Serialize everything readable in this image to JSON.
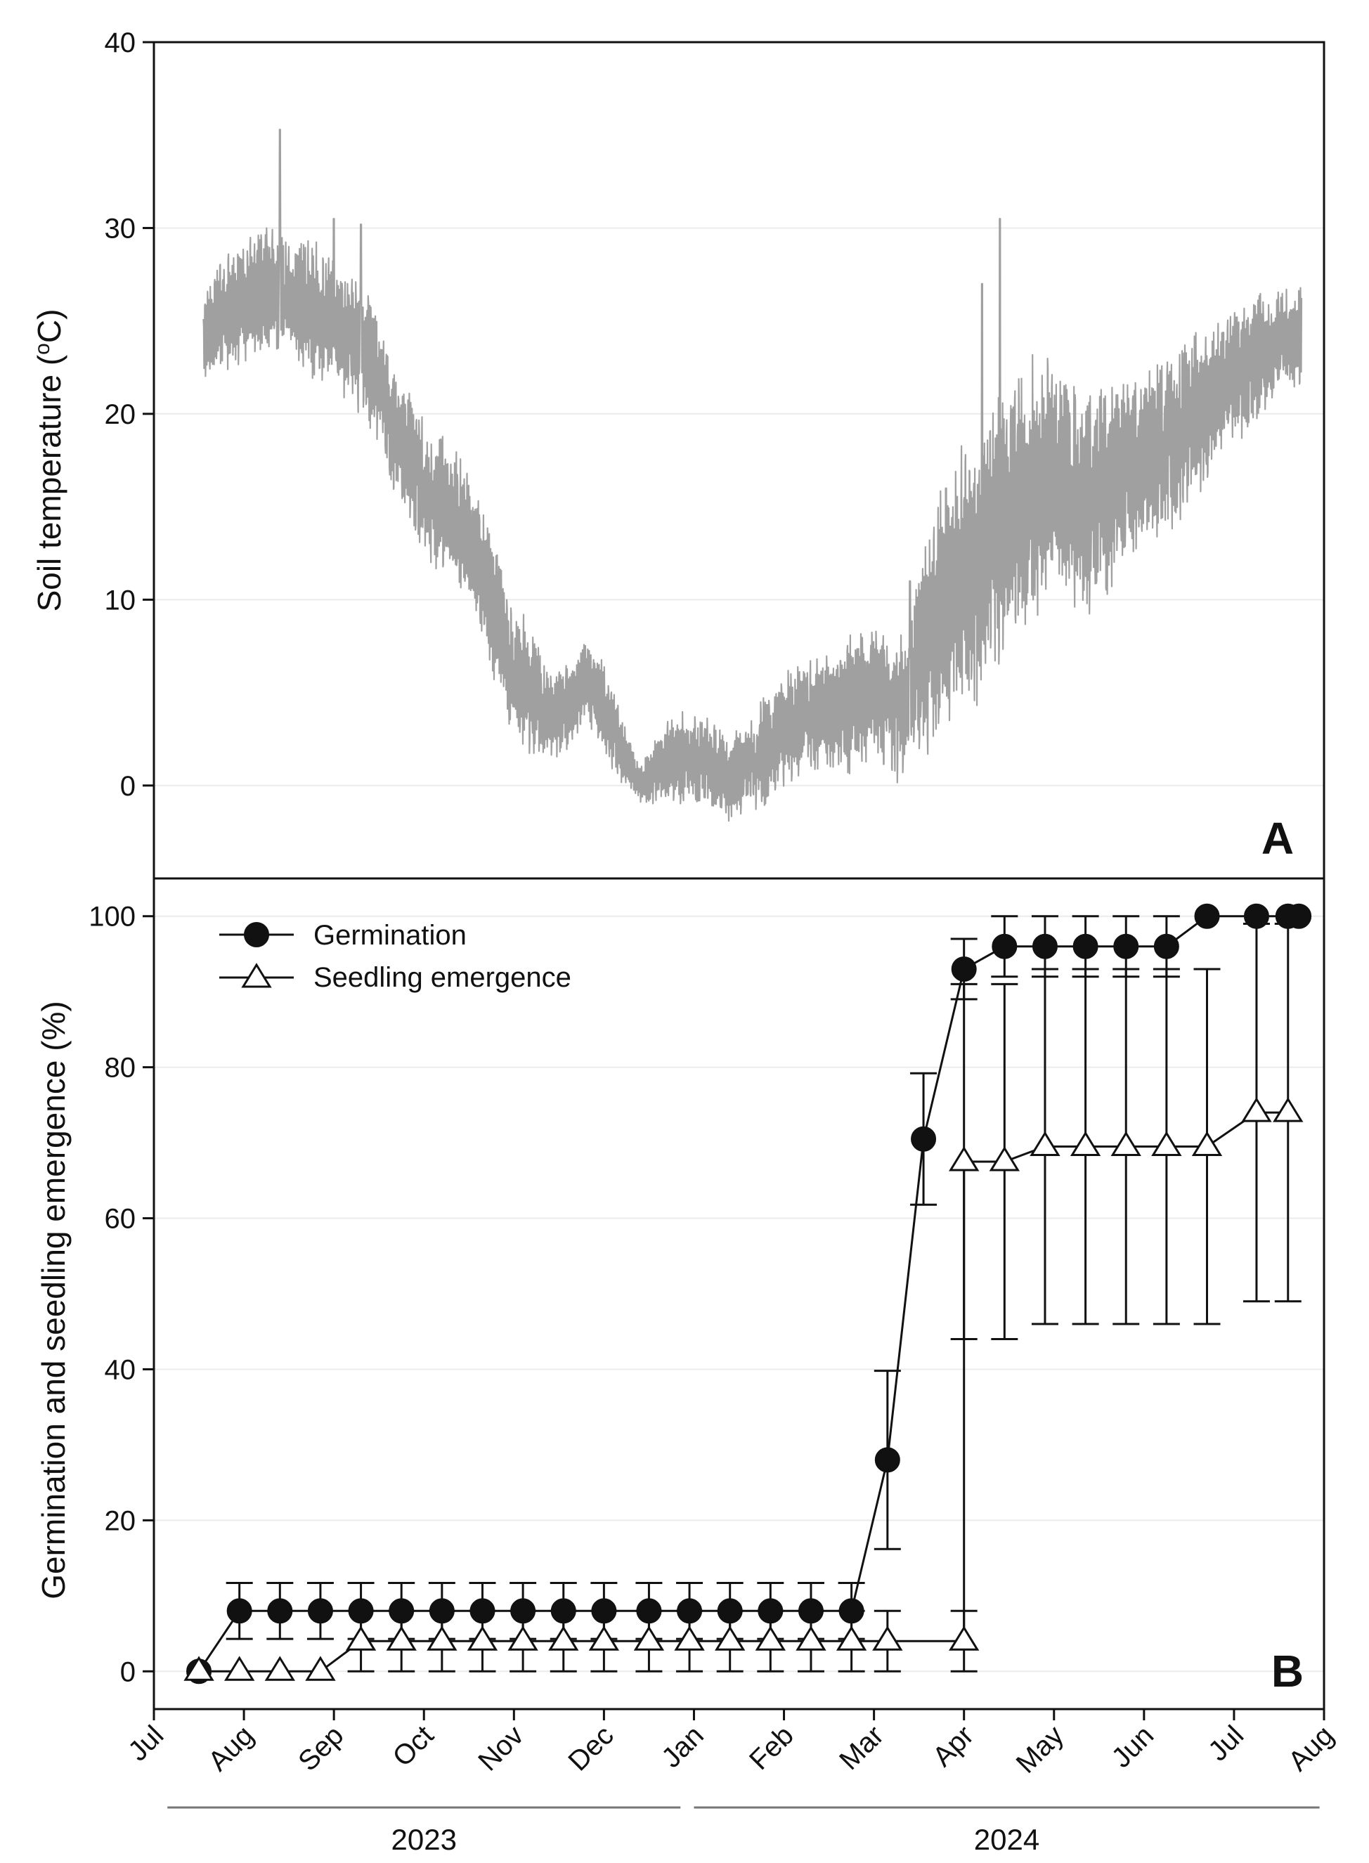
{
  "chart_data": [
    {
      "panel": "A",
      "type": "line",
      "ylabel": "Soil temperature (°C)",
      "ylabel_parts": [
        "Soil temperature (",
        "o",
        "C)"
      ],
      "ylim": [
        -5,
        40
      ],
      "yticks": [
        0,
        10,
        20,
        30,
        40
      ],
      "grid": true,
      "series": [
        {
          "name": "Soil temperature",
          "color": "#a0a0a0",
          "x_months": [
            0.55,
            0.7,
            0.85,
            1.0,
            1.15,
            1.3,
            1.45,
            1.6,
            1.8,
            2.0,
            2.2,
            2.4,
            2.6,
            2.8,
            3.0,
            3.2,
            3.4,
            3.6,
            3.8,
            4.0,
            4.2,
            4.4,
            4.6,
            4.8,
            5.0,
            5.2,
            5.4,
            5.6,
            5.8,
            6.0,
            6.2,
            6.4,
            6.6,
            6.8,
            7.0,
            7.2,
            7.4,
            7.6,
            7.8,
            8.0,
            8.2,
            8.4,
            8.6,
            8.8,
            9.0,
            9.2,
            9.4,
            9.6,
            9.8,
            10.0,
            10.2,
            10.4,
            10.6,
            10.8,
            11.0,
            11.2,
            11.4,
            11.6,
            11.8,
            12.0,
            12.2,
            12.4,
            12.6,
            12.75
          ],
          "mean": [
            24,
            25,
            25.5,
            26,
            26.5,
            27,
            26.5,
            26,
            25.5,
            25,
            24,
            23,
            20,
            18,
            16,
            15,
            14,
            12,
            9,
            6,
            5,
            4,
            4,
            6,
            4,
            2,
            0,
            1,
            1.5,
            1.5,
            1,
            0.5,
            1,
            2,
            3,
            3.5,
            4,
            4,
            4.5,
            5,
            4,
            5,
            8,
            10,
            11,
            12,
            14,
            15,
            16,
            17,
            16,
            15,
            16,
            17,
            18,
            18,
            19,
            20,
            21,
            22,
            23,
            23.5,
            24,
            24.5
          ],
          "amp": [
            2,
            2.5,
            2.5,
            2.5,
            3,
            3,
            2.5,
            3,
            3,
            3,
            3,
            3,
            3,
            3,
            3,
            3,
            3,
            3,
            3,
            3,
            3,
            2,
            2,
            2,
            2,
            1.5,
            1,
            1.5,
            2,
            2,
            2,
            2,
            2,
            2.5,
            2.5,
            2.5,
            2.5,
            3,
            3,
            3,
            3,
            4,
            5,
            6,
            6,
            6,
            6,
            6,
            6,
            5,
            5,
            5,
            5,
            4,
            4,
            4,
            4,
            4,
            3,
            3,
            3,
            2.5,
            2.5,
            2.5
          ],
          "peaks": [
            [
              1.4,
              35.3
            ],
            [
              2.0,
              30.5
            ],
            [
              2.3,
              30.2
            ],
            [
              8.4,
              11.0
            ],
            [
              8.8,
              16.0
            ],
            [
              9.4,
              30.5
            ],
            [
              9.2,
              27.0
            ]
          ]
        }
      ]
    },
    {
      "panel": "B",
      "type": "line",
      "ylabel": "Germination and seedling emergence (%)",
      "ylim": [
        -5,
        105
      ],
      "yticks": [
        0,
        20,
        40,
        60,
        80,
        100
      ],
      "grid": true,
      "xlabel": "",
      "month_labels": [
        "Jul",
        "Aug",
        "Sep",
        "Oct",
        "Nov",
        "Dec",
        "Jan",
        "Feb",
        "Mar",
        "Apr",
        "May",
        "Jun",
        "Jul",
        "Aug"
      ],
      "years": [
        {
          "label": "2023",
          "from": 0.15,
          "to": 5.85
        },
        {
          "label": "2024",
          "from": 6.0,
          "to": 12.95
        }
      ],
      "series": [
        {
          "name": "Germination",
          "marker": "filled-circle",
          "x": [
            0.5,
            0.95,
            1.4,
            1.85,
            2.3,
            2.75,
            3.2,
            3.65,
            4.1,
            4.55,
            5.0,
            5.5,
            5.95,
            6.4,
            6.85,
            7.3,
            7.75,
            8.15,
            8.55,
            9.0,
            9.45,
            9.9,
            10.35,
            10.8,
            11.25,
            11.7,
            12.25,
            12.6,
            12.72
          ],
          "y": [
            0,
            8,
            8,
            8,
            8,
            8,
            8,
            8,
            8,
            8,
            8,
            8,
            8,
            8,
            8,
            8,
            8,
            28,
            70.5,
            93,
            96,
            96,
            96,
            96,
            96,
            100,
            100,
            100,
            100
          ],
          "err": [
            0,
            3.7,
            3.7,
            3.7,
            3.7,
            3.7,
            3.7,
            3.7,
            3.7,
            3.7,
            3.7,
            3.7,
            3.7,
            3.7,
            3.7,
            3.7,
            3.7,
            11.8,
            8.7,
            4,
            4,
            4,
            4,
            4,
            4,
            0,
            0,
            0,
            0
          ]
        },
        {
          "name": "Seedling emergence",
          "marker": "open-triangle",
          "x": [
            0.5,
            0.95,
            1.4,
            1.85,
            2.3,
            2.75,
            3.2,
            3.65,
            4.1,
            4.55,
            5.0,
            5.5,
            5.95,
            6.4,
            6.85,
            7.3,
            7.75,
            8.15,
            8.55,
            9.0,
            9.45,
            9.9,
            10.35,
            10.8,
            11.25,
            11.7,
            12.25,
            12.6
          ],
          "y": [
            0,
            0,
            0,
            0,
            4,
            4,
            4,
            4,
            4,
            4,
            4,
            4,
            4,
            4,
            4,
            4,
            4,
            4,
            4,
            67.5,
            67.5,
            69.5,
            69.5,
            69.5,
            69.5,
            69.5,
            74,
            74
          ],
          "err": [
            0,
            0,
            0,
            0,
            4,
            4,
            4,
            4,
            4,
            4,
            4,
            4,
            4,
            4,
            4,
            4,
            4,
            4,
            4,
            23.5,
            23.5,
            23.5,
            23.5,
            23.5,
            23.5,
            23.5,
            25,
            25
          ],
          "x_shift": [
            0,
            0,
            0,
            0,
            0,
            0,
            0,
            0,
            0,
            0,
            0,
            0,
            0,
            0,
            0,
            0,
            0,
            0,
            0.45,
            0,
            0,
            0,
            0,
            0,
            0,
            0,
            0,
            0
          ]
        }
      ]
    }
  ]
}
